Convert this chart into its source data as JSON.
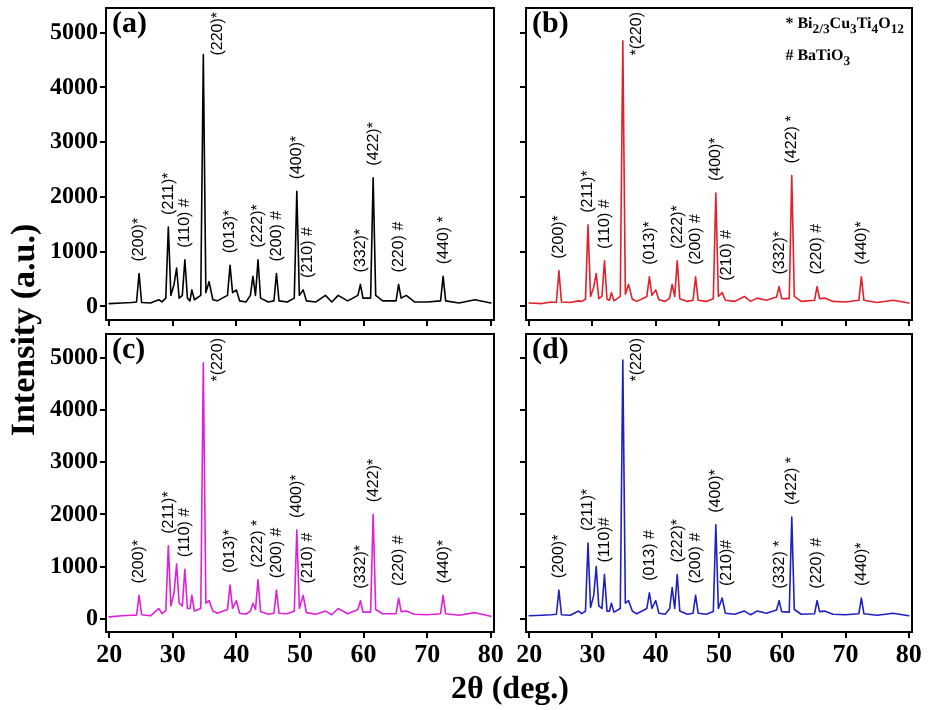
{
  "chart_data": [
    {
      "type": "line",
      "ylabel": "Intensity (a.u.)",
      "tick_labels": "y",
      "xlim": [
        19.5,
        80.5
      ],
      "xticks": [
        20,
        30,
        40,
        50,
        60,
        70,
        80
      ],
      "ylim": [
        -250,
        5450
      ],
      "yticks": [
        0,
        1000,
        2000,
        3000,
        4000,
        5000
      ],
      "x": [
        20,
        22,
        23.5,
        24.3,
        24.7,
        25.1,
        26.5,
        27.8,
        28.3,
        28.9,
        29.3,
        29.7,
        30.2,
        30.6,
        31,
        31.5,
        31.9,
        32.3,
        32.7,
        33,
        33.4,
        34.4,
        34.8,
        35.2,
        35.7,
        36.3,
        37,
        38.6,
        39,
        39.4,
        40,
        40.5,
        41.5,
        42.2,
        42.6,
        43,
        43.4,
        43.8,
        45,
        45.9,
        46.3,
        46.7,
        48,
        49.1,
        49.5,
        49.9,
        50.5,
        51,
        52.5,
        54,
        55,
        56,
        57.5,
        59.1,
        59.5,
        59.9,
        61.1,
        61.5,
        61.9,
        63,
        65.1,
        65.5,
        65.9,
        66.7,
        68,
        70,
        72.1,
        72.5,
        72.9,
        75,
        77.5,
        80
      ],
      "series": [
        {
          "color": "#000000",
          "values": [
            50,
            60,
            70,
            80,
            600,
            70,
            60,
            120,
            80,
            150,
            1450,
            200,
            400,
            700,
            150,
            200,
            850,
            150,
            100,
            300,
            120,
            200,
            4600,
            250,
            450,
            120,
            100,
            200,
            750,
            250,
            300,
            100,
            80,
            200,
            550,
            200,
            850,
            150,
            80,
            100,
            600,
            100,
            80,
            150,
            2100,
            200,
            300,
            100,
            80,
            200,
            80,
            200,
            100,
            200,
            400,
            150,
            150,
            2350,
            200,
            100,
            100,
            400,
            150,
            200,
            80,
            80,
            100,
            550,
            100,
            60,
            120,
            60
          ]
        }
      ],
      "annotations": [
        "(a)",
        {
          "text": "(200)*",
          "x": 24.7,
          "y": 600
        },
        {
          "text": "(211)*",
          "x": 29.3,
          "y": 1450
        },
        {
          "text": "(110) #",
          "x": 31.9,
          "y": 850
        },
        {
          "text": "(220)*",
          "x": 34.8,
          "y": 4600
        },
        {
          "text": "(013)*",
          "x": 39,
          "y": 750
        },
        {
          "text": "(222)*",
          "x": 43.4,
          "y": 850
        },
        {
          "text": "(200) #",
          "x": 46.3,
          "y": 600
        },
        {
          "text": "(400)*",
          "x": 49.5,
          "y": 2100
        },
        {
          "text": "(210) #",
          "x": 51.2,
          "y": 300
        },
        {
          "text": "(332)*",
          "x": 59.5,
          "y": 400
        },
        {
          "text": "(422)*",
          "x": 61.5,
          "y": 2350
        },
        {
          "text": "(220) #",
          "x": 65.5,
          "y": 400
        },
        {
          "text": "(440) *",
          "x": 72.5,
          "y": 550
        }
      ]
    },
    {
      "type": "line",
      "tick_labels": false,
      "xlim": [
        19.5,
        80.5
      ],
      "xticks": [
        20,
        30,
        40,
        50,
        60,
        70,
        80
      ],
      "ylim": [
        -250,
        5450
      ],
      "yticks": [
        0,
        1000,
        2000,
        3000,
        4000,
        5000
      ],
      "x": [
        20,
        22,
        23.5,
        24.3,
        24.7,
        25.1,
        26.5,
        27.8,
        28.3,
        28.9,
        29.3,
        29.7,
        30.2,
        30.6,
        31,
        31.5,
        31.9,
        32.3,
        32.7,
        33,
        33.4,
        34.4,
        34.8,
        35.2,
        35.7,
        36.3,
        37,
        38.6,
        39,
        39.4,
        40,
        40.5,
        41.5,
        42.2,
        42.6,
        43,
        43.4,
        43.8,
        45,
        45.9,
        46.3,
        46.7,
        48,
        49.1,
        49.5,
        49.9,
        50.5,
        51,
        52.5,
        54,
        55,
        56,
        57.5,
        59.1,
        59.5,
        59.9,
        61.1,
        61.5,
        61.9,
        63,
        65.1,
        65.5,
        65.9,
        66.7,
        68,
        70,
        72.1,
        72.5,
        72.9,
        75,
        77.5,
        80
      ],
      "series": [
        {
          "color": "#e0202a",
          "values": [
            60,
            50,
            80,
            70,
            650,
            80,
            70,
            100,
            90,
            130,
            1490,
            180,
            350,
            600,
            140,
            180,
            830,
            130,
            110,
            250,
            100,
            180,
            4850,
            220,
            400,
            130,
            90,
            180,
            540,
            200,
            300,
            120,
            90,
            150,
            400,
            180,
            830,
            140,
            90,
            110,
            540,
            110,
            90,
            140,
            2070,
            180,
            250,
            110,
            90,
            180,
            90,
            150,
            110,
            170,
            360,
            140,
            140,
            2390,
            180,
            90,
            110,
            360,
            140,
            150,
            90,
            80,
            110,
            540,
            110,
            70,
            110,
            60
          ]
        }
      ],
      "annotations": [
        "(b)",
        "* Bi$_{2/3}$Cu$_{3}$Ti$_{4}$O$_{12}$",
        "# BaTiO$_{3}$",
        {
          "text": "(200)*",
          "x": 24.7,
          "y": 650
        },
        {
          "text": "(211)*",
          "x": 29.3,
          "y": 1490
        },
        {
          "text": "(110) #",
          "x": 31.9,
          "y": 830
        },
        {
          "text": "*(220)",
          "x": 34.8,
          "y": 4850
        },
        {
          "text": "(013)*",
          "x": 39,
          "y": 540
        },
        {
          "text": "(222)*",
          "x": 43.4,
          "y": 830
        },
        {
          "text": "(200) #",
          "x": 46.3,
          "y": 540
        },
        {
          "text": "(400)*",
          "x": 49.5,
          "y": 2070
        },
        {
          "text": "(210) #",
          "x": 51.2,
          "y": 250
        },
        {
          "text": "(332)*",
          "x": 59.5,
          "y": 360
        },
        {
          "text": "(422) *",
          "x": 61.5,
          "y": 2390
        },
        {
          "text": "(220) #",
          "x": 65.5,
          "y": 360
        },
        {
          "text": "(440)*",
          "x": 72.5,
          "y": 540
        }
      ]
    },
    {
      "type": "line",
      "xlabel": "2θ (deg.)",
      "xlim": [
        19.5,
        80.5
      ],
      "xticks": [
        20,
        30,
        40,
        50,
        60,
        70,
        80
      ],
      "ylim": [
        -250,
        5450
      ],
      "yticks": [
        0,
        1000,
        2000,
        3000,
        4000,
        5000
      ],
      "x": [
        20,
        22,
        23.5,
        24.3,
        24.7,
        25.1,
        26.5,
        27.8,
        28.3,
        28.9,
        29.3,
        29.7,
        30.2,
        30.6,
        31,
        31.5,
        31.9,
        32.3,
        32.7,
        33,
        33.4,
        34.4,
        34.8,
        35.2,
        35.7,
        36.3,
        37,
        38.6,
        39,
        39.4,
        40,
        40.5,
        41.5,
        42.2,
        42.6,
        43,
        43.4,
        43.8,
        45,
        45.9,
        46.3,
        46.7,
        48,
        49.1,
        49.5,
        49.9,
        50.5,
        51,
        52.5,
        54,
        55,
        56,
        57.5,
        59.1,
        59.5,
        59.9,
        61.1,
        61.5,
        61.9,
        63,
        65.1,
        65.5,
        65.9,
        66.7,
        68,
        70,
        72.1,
        72.5,
        72.9,
        75,
        77.5,
        80
      ],
      "series": [
        {
          "color": "#e020d8",
          "values": [
            40,
            60,
            70,
            70,
            450,
            80,
            60,
            200,
            100,
            160,
            1400,
            250,
            500,
            1050,
            300,
            250,
            950,
            200,
            200,
            450,
            150,
            200,
            4900,
            300,
            350,
            150,
            110,
            180,
            650,
            200,
            350,
            110,
            90,
            150,
            300,
            180,
            750,
            140,
            90,
            110,
            550,
            110,
            100,
            150,
            1700,
            200,
            450,
            120,
            90,
            150,
            80,
            200,
            100,
            180,
            350,
            130,
            130,
            2000,
            180,
            100,
            100,
            400,
            140,
            150,
            90,
            80,
            100,
            450,
            100,
            70,
            120,
            50
          ]
        }
      ],
      "annotations": [
        "(c)",
        {
          "text": "(200)*",
          "x": 24.7,
          "y": 450
        },
        {
          "text": "(211)*",
          "x": 29.3,
          "y": 1400
        },
        {
          "text": "(110) #",
          "x": 31.9,
          "y": 950
        },
        {
          "text": "*(220)",
          "x": 34.8,
          "y": 4900
        },
        {
          "text": "(013)*",
          "x": 39,
          "y": 650
        },
        {
          "text": "(222) *",
          "x": 43.4,
          "y": 750
        },
        {
          "text": "(200) #",
          "x": 46.3,
          "y": 550
        },
        {
          "text": "(400)*",
          "x": 49.5,
          "y": 1700
        },
        {
          "text": "(210) #",
          "x": 51.2,
          "y": 450
        },
        {
          "text": "(332)*",
          "x": 59.5,
          "y": 350
        },
        {
          "text": "(422)*",
          "x": 61.5,
          "y": 2000
        },
        {
          "text": "(220) #",
          "x": 65.5,
          "y": 400
        },
        {
          "text": "(440)*",
          "x": 72.5,
          "y": 450
        }
      ]
    },
    {
      "type": "line",
      "tick_labels": "x",
      "xlim": [
        19.5,
        80.5
      ],
      "xticks": [
        20,
        30,
        40,
        50,
        60,
        70,
        80
      ],
      "ylim": [
        -250,
        5450
      ],
      "yticks": [
        0,
        1000,
        2000,
        3000,
        4000,
        5000
      ],
      "x": [
        20,
        22,
        23.5,
        24.3,
        24.7,
        25.1,
        26.5,
        27.8,
        28.3,
        28.9,
        29.3,
        29.7,
        30.2,
        30.6,
        31,
        31.5,
        31.9,
        32.3,
        32.7,
        33,
        33.4,
        34.4,
        34.8,
        35.2,
        35.7,
        36.3,
        37,
        38.6,
        39,
        39.4,
        40,
        40.5,
        41.5,
        42.2,
        42.6,
        43,
        43.4,
        43.8,
        45,
        45.9,
        46.3,
        46.7,
        48,
        49.1,
        49.5,
        49.9,
        50.5,
        51,
        52.5,
        54,
        55,
        56,
        57.5,
        59.1,
        59.5,
        59.9,
        61.1,
        61.5,
        61.9,
        63,
        65.1,
        65.5,
        65.9,
        66.7,
        68,
        70,
        72.1,
        72.5,
        72.9,
        75,
        77.5,
        80
      ],
      "series": [
        {
          "color": "#2020c0",
          "values": [
            60,
            70,
            80,
            90,
            550,
            80,
            70,
            150,
            100,
            150,
            1450,
            220,
            450,
            1000,
            250,
            200,
            850,
            150,
            150,
            300,
            130,
            200,
            4950,
            300,
            350,
            150,
            100,
            200,
            500,
            200,
            350,
            110,
            90,
            200,
            600,
            200,
            850,
            150,
            90,
            110,
            450,
            110,
            90,
            140,
            1800,
            200,
            400,
            110,
            90,
            150,
            80,
            150,
            110,
            170,
            350,
            140,
            130,
            1950,
            180,
            90,
            100,
            350,
            140,
            150,
            90,
            80,
            100,
            400,
            100,
            70,
            110,
            60
          ]
        }
      ],
      "annotations": [
        "(d)",
        {
          "text": "(200)*",
          "x": 24.7,
          "y": 550
        },
        {
          "text": "(211)*",
          "x": 29.3,
          "y": 1450
        },
        {
          "text": "(110)#",
          "x": 31.9,
          "y": 850
        },
        {
          "text": "*(220)",
          "x": 34.8,
          "y": 4950
        },
        {
          "text": "(013) #",
          "x": 39,
          "y": 500
        },
        {
          "text": "(222)*",
          "x": 43.4,
          "y": 850
        },
        {
          "text": "(200) #",
          "x": 46.3,
          "y": 450
        },
        {
          "text": "(400)*",
          "x": 49.5,
          "y": 1800
        },
        {
          "text": "(210)#",
          "x": 51.2,
          "y": 400
        },
        {
          "text": "(332) *",
          "x": 59.5,
          "y": 350
        },
        {
          "text": "(422) *",
          "x": 61.5,
          "y": 1950
        },
        {
          "text": "(220) #",
          "x": 65.5,
          "y": 350
        },
        {
          "text": "(440)*",
          "x": 72.5,
          "y": 400
        }
      ]
    }
  ]
}
